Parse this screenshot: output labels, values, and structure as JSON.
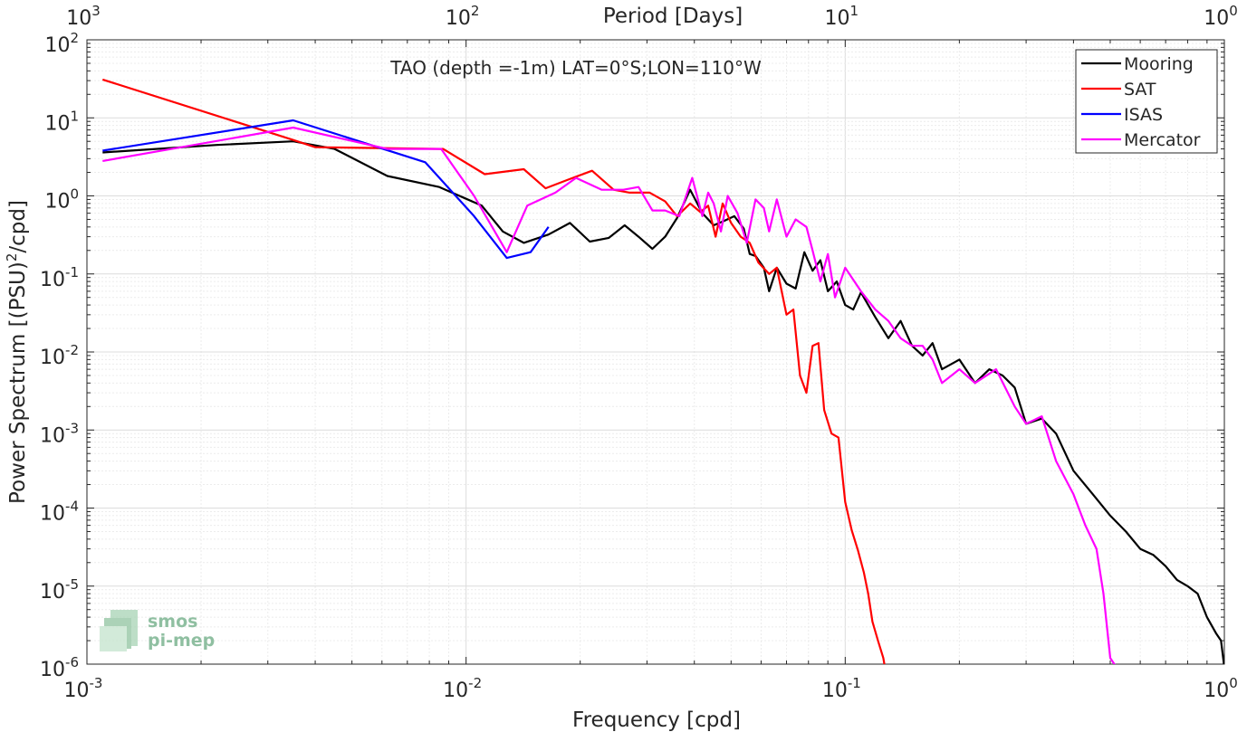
{
  "chart_data": {
    "type": "line",
    "title": "TAO (depth =-1m) LAT=0°S;LON=110°W",
    "xlabel": "Frequency [cpd]",
    "ylabel": "Power Spectrum [(PSU)²/cpd]",
    "ylabel_parts": {
      "before": "Power Spectrum [(PSU)",
      "sup": "2",
      "after": "/cpd]"
    },
    "x2label": "Period [Days]",
    "xscale": "log",
    "yscale": "log",
    "xlim": [
      0.001,
      1
    ],
    "ylim": [
      1e-06,
      100
    ],
    "grid": true,
    "legend_position": "top-right",
    "x_ticks": [
      {
        "base": "10",
        "exp": "-3"
      },
      {
        "base": "10",
        "exp": "-2"
      },
      {
        "base": "10",
        "exp": "-1"
      },
      {
        "base": "10",
        "exp": "0"
      }
    ],
    "y_ticks": [
      {
        "base": "10",
        "exp": "-6"
      },
      {
        "base": "10",
        "exp": "-5"
      },
      {
        "base": "10",
        "exp": "-4"
      },
      {
        "base": "10",
        "exp": "-3"
      },
      {
        "base": "10",
        "exp": "-2"
      },
      {
        "base": "10",
        "exp": "-1"
      },
      {
        "base": "10",
        "exp": "0"
      },
      {
        "base": "10",
        "exp": "1"
      },
      {
        "base": "10",
        "exp": "2"
      }
    ],
    "x2_ticks": [
      {
        "base": "10",
        "exp": "3"
      },
      {
        "base": "10",
        "exp": "2"
      },
      {
        "base": "10",
        "exp": "1"
      },
      {
        "base": "10",
        "exp": "0"
      }
    ],
    "series": [
      {
        "name": "Mooring",
        "color": "#000000",
        "points": [
          [
            0.0011,
            3.6
          ],
          [
            0.0022,
            4.5
          ],
          [
            0.0035,
            5.0
          ],
          [
            0.0045,
            4.0
          ],
          [
            0.0062,
            1.8
          ],
          [
            0.0085,
            1.3
          ],
          [
            0.011,
            0.75
          ],
          [
            0.0125,
            0.35
          ],
          [
            0.0142,
            0.25
          ],
          [
            0.0165,
            0.32
          ],
          [
            0.0188,
            0.45
          ],
          [
            0.0212,
            0.26
          ],
          [
            0.0238,
            0.29
          ],
          [
            0.0262,
            0.42
          ],
          [
            0.0285,
            0.3
          ],
          [
            0.031,
            0.21
          ],
          [
            0.0335,
            0.3
          ],
          [
            0.036,
            0.52
          ],
          [
            0.039,
            1.2
          ],
          [
            0.042,
            0.6
          ],
          [
            0.045,
            0.42
          ],
          [
            0.048,
            0.48
          ],
          [
            0.051,
            0.55
          ],
          [
            0.054,
            0.38
          ],
          [
            0.056,
            0.18
          ],
          [
            0.058,
            0.17
          ],
          [
            0.061,
            0.12
          ],
          [
            0.063,
            0.06
          ],
          [
            0.066,
            0.12
          ],
          [
            0.07,
            0.075
          ],
          [
            0.074,
            0.065
          ],
          [
            0.078,
            0.19
          ],
          [
            0.082,
            0.11
          ],
          [
            0.086,
            0.15
          ],
          [
            0.09,
            0.06
          ],
          [
            0.095,
            0.08
          ],
          [
            0.1,
            0.04
          ],
          [
            0.105,
            0.035
          ],
          [
            0.11,
            0.058
          ],
          [
            0.12,
            0.028
          ],
          [
            0.13,
            0.015
          ],
          [
            0.14,
            0.025
          ],
          [
            0.15,
            0.012
          ],
          [
            0.16,
            0.009
          ],
          [
            0.17,
            0.013
          ],
          [
            0.18,
            0.006
          ],
          [
            0.2,
            0.008
          ],
          [
            0.22,
            0.004
          ],
          [
            0.24,
            0.006
          ],
          [
            0.26,
            0.005
          ],
          [
            0.28,
            0.0035
          ],
          [
            0.3,
            0.0012
          ],
          [
            0.33,
            0.0014
          ],
          [
            0.36,
            0.0009
          ],
          [
            0.4,
            0.0003
          ],
          [
            0.45,
            0.00015
          ],
          [
            0.5,
            8e-05
          ],
          [
            0.55,
            5e-05
          ],
          [
            0.6,
            3e-05
          ],
          [
            0.65,
            2.5e-05
          ],
          [
            0.7,
            1.8e-05
          ],
          [
            0.75,
            1.2e-05
          ],
          [
            0.8,
            1e-05
          ],
          [
            0.85,
            8e-06
          ],
          [
            0.9,
            4e-06
          ],
          [
            0.95,
            2.5e-06
          ],
          [
            0.98,
            2e-06
          ],
          [
            1.0,
            9e-07
          ]
        ]
      },
      {
        "name": "SAT",
        "color": "#ff0000",
        "points": [
          [
            0.0011,
            31
          ],
          [
            0.0035,
            5.2
          ],
          [
            0.004,
            4.2
          ],
          [
            0.0087,
            4.0
          ],
          [
            0.0112,
            1.9
          ],
          [
            0.0142,
            2.2
          ],
          [
            0.0162,
            1.25
          ],
          [
            0.0185,
            1.6
          ],
          [
            0.0215,
            2.1
          ],
          [
            0.0245,
            1.2
          ],
          [
            0.027,
            1.1
          ],
          [
            0.0305,
            1.1
          ],
          [
            0.0335,
            0.85
          ],
          [
            0.036,
            0.55
          ],
          [
            0.039,
            0.8
          ],
          [
            0.0415,
            0.62
          ],
          [
            0.0435,
            0.75
          ],
          [
            0.0455,
            0.3
          ],
          [
            0.0475,
            0.8
          ],
          [
            0.05,
            0.45
          ],
          [
            0.053,
            0.3
          ],
          [
            0.056,
            0.25
          ],
          [
            0.059,
            0.14
          ],
          [
            0.063,
            0.1
          ],
          [
            0.066,
            0.12
          ],
          [
            0.07,
            0.03
          ],
          [
            0.073,
            0.035
          ],
          [
            0.076,
            0.005
          ],
          [
            0.079,
            0.003
          ],
          [
            0.082,
            0.012
          ],
          [
            0.085,
            0.013
          ],
          [
            0.088,
            0.0018
          ],
          [
            0.092,
            0.0009
          ],
          [
            0.096,
            0.0008
          ],
          [
            0.1,
            0.00012
          ],
          [
            0.104,
            5.2e-05
          ],
          [
            0.108,
            2.9e-05
          ],
          [
            0.112,
            1.5e-05
          ],
          [
            0.115,
            8e-06
          ],
          [
            0.118,
            3.5e-06
          ],
          [
            0.122,
            2e-06
          ],
          [
            0.126,
            1.2e-06
          ],
          [
            0.13,
            5e-07
          ]
        ]
      },
      {
        "name": "ISAS",
        "color": "#0000ff",
        "points": [
          [
            0.0011,
            3.8
          ],
          [
            0.0035,
            9.3
          ],
          [
            0.0078,
            2.7
          ],
          [
            0.0105,
            0.55
          ],
          [
            0.0128,
            0.16
          ],
          [
            0.0148,
            0.19
          ],
          [
            0.0165,
            0.4
          ]
        ]
      },
      {
        "name": "Mercator",
        "color": "#ff00ff",
        "points": [
          [
            0.0011,
            2.8
          ],
          [
            0.0035,
            7.5
          ],
          [
            0.0062,
            4.0
          ],
          [
            0.0086,
            4.0
          ],
          [
            0.0105,
            1.0
          ],
          [
            0.0128,
            0.19
          ],
          [
            0.0145,
            0.75
          ],
          [
            0.0172,
            1.1
          ],
          [
            0.0195,
            1.7
          ],
          [
            0.0228,
            1.2
          ],
          [
            0.026,
            1.2
          ],
          [
            0.0285,
            1.3
          ],
          [
            0.031,
            0.65
          ],
          [
            0.0335,
            0.65
          ],
          [
            0.0365,
            0.55
          ],
          [
            0.0395,
            1.7
          ],
          [
            0.042,
            0.55
          ],
          [
            0.0435,
            1.1
          ],
          [
            0.045,
            0.8
          ],
          [
            0.047,
            0.35
          ],
          [
            0.049,
            1.0
          ],
          [
            0.052,
            0.6
          ],
          [
            0.055,
            0.25
          ],
          [
            0.058,
            0.9
          ],
          [
            0.061,
            0.7
          ],
          [
            0.063,
            0.35
          ],
          [
            0.066,
            0.9
          ],
          [
            0.07,
            0.3
          ],
          [
            0.074,
            0.5
          ],
          [
            0.079,
            0.4
          ],
          [
            0.082,
            0.2
          ],
          [
            0.086,
            0.08
          ],
          [
            0.09,
            0.18
          ],
          [
            0.094,
            0.05
          ],
          [
            0.1,
            0.12
          ],
          [
            0.11,
            0.06
          ],
          [
            0.12,
            0.035
          ],
          [
            0.13,
            0.025
          ],
          [
            0.14,
            0.015
          ],
          [
            0.15,
            0.012
          ],
          [
            0.16,
            0.012
          ],
          [
            0.17,
            0.008
          ],
          [
            0.18,
            0.004
          ],
          [
            0.2,
            0.006
          ],
          [
            0.22,
            0.004
          ],
          [
            0.25,
            0.006
          ],
          [
            0.28,
            0.002
          ],
          [
            0.3,
            0.0012
          ],
          [
            0.33,
            0.0015
          ],
          [
            0.36,
            0.0004
          ],
          [
            0.4,
            0.00015
          ],
          [
            0.43,
            6e-05
          ],
          [
            0.46,
            3e-05
          ],
          [
            0.48,
            8e-06
          ],
          [
            0.5,
            1.2e-06
          ],
          [
            0.52,
            9e-07
          ]
        ]
      }
    ]
  },
  "logo": {
    "line1": "smos",
    "line2": "pi-mep"
  }
}
